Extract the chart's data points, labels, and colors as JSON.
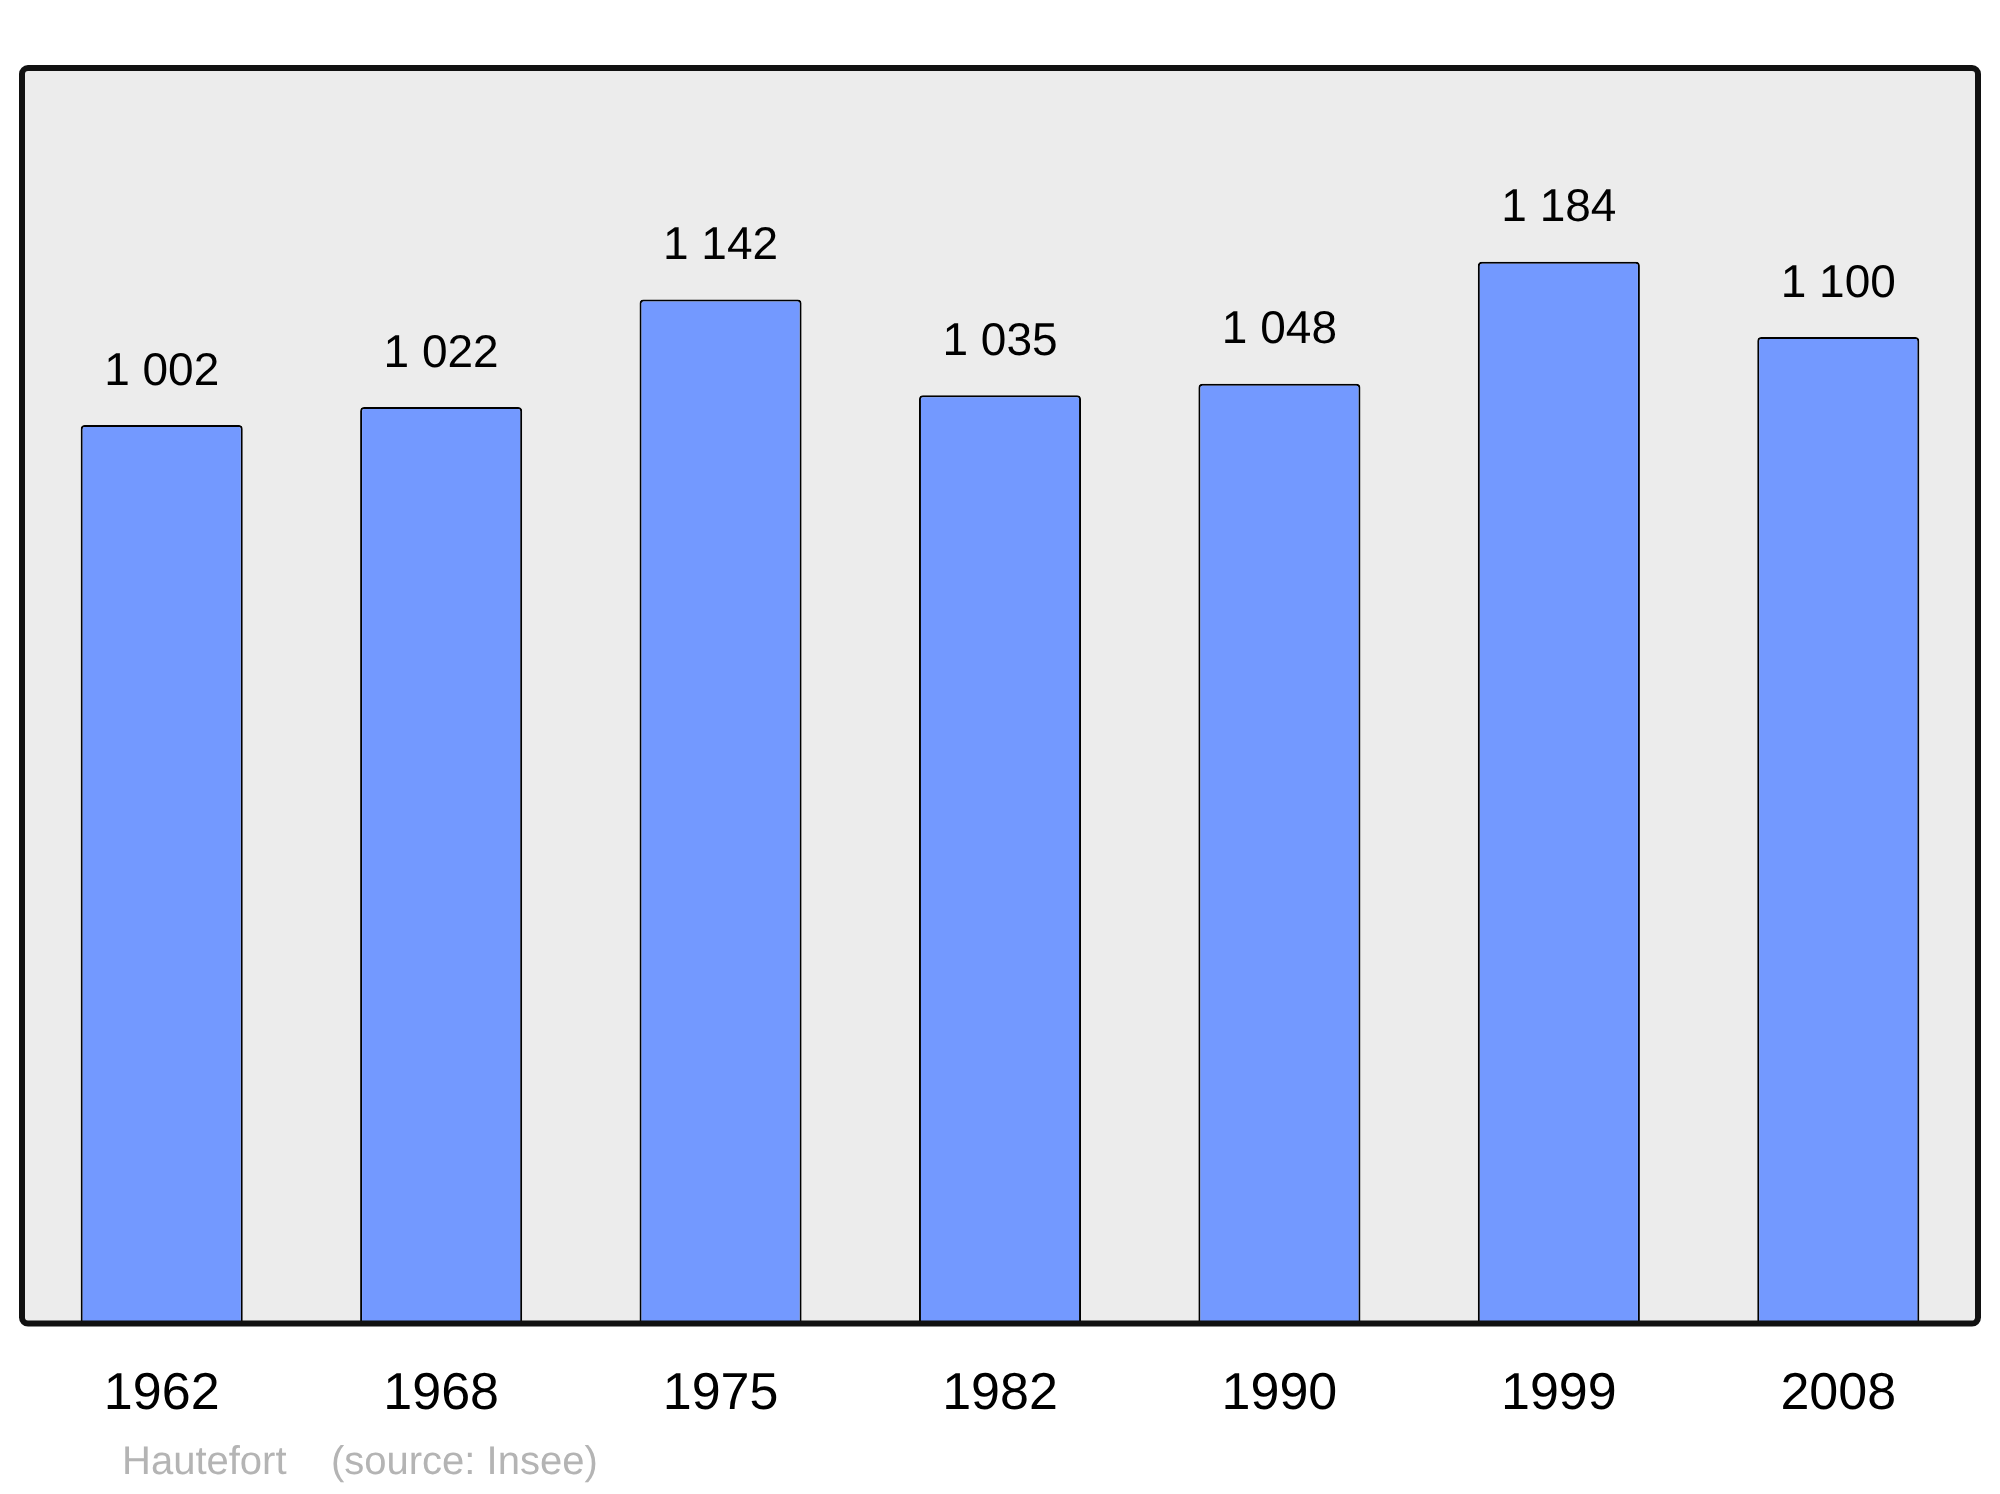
{
  "chart_data": {
    "type": "bar",
    "categories": [
      "1962",
      "1968",
      "1975",
      "1982",
      "1990",
      "1999",
      "2008"
    ],
    "values": [
      1002,
      1022,
      1142,
      1035,
      1048,
      1184,
      1100
    ],
    "value_labels": [
      "1 002",
      "1 022",
      "1 142",
      "1 035",
      "1 048",
      "1 184",
      "1 100"
    ],
    "color": "#7399ff",
    "grid": false,
    "legend": false,
    "annotations": [
      "Hautefort    (source: Insee)"
    ]
  }
}
